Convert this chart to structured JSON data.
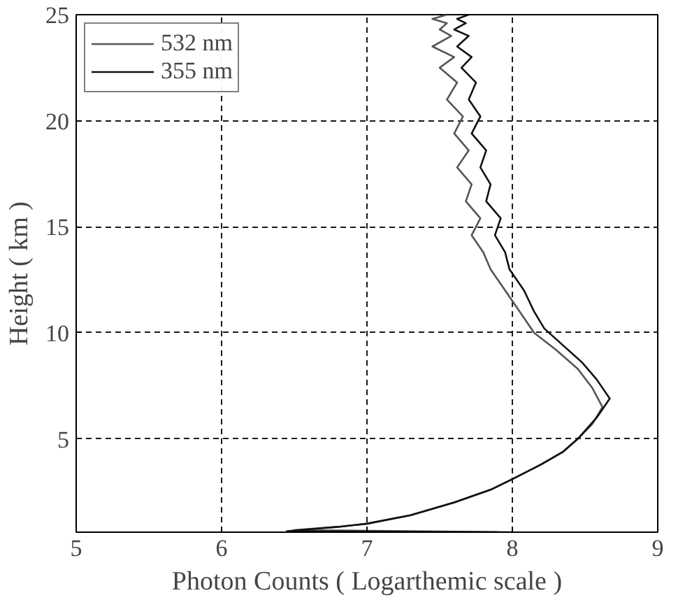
{
  "chart_data": {
    "type": "line",
    "xlabel": "Photon Counts ( Logarthemic scale )",
    "ylabel": "Height ( km )",
    "xlim": [
      5,
      9
    ],
    "ylim": [
      0.6,
      25
    ],
    "xticks": [
      5,
      6,
      7,
      8,
      9
    ],
    "yticks": [
      5,
      10,
      15,
      20,
      25
    ],
    "grid": true,
    "legend": "top left",
    "line_style": "solid",
    "marker": "none",
    "series": [
      {
        "name": "532 nm",
        "color": "#555555",
        "x": [
          8.0,
          6.5,
          6.8,
          7.0,
          7.3,
          7.6,
          7.85,
          8.0,
          8.2,
          8.35,
          8.45,
          8.55,
          8.62,
          8.55,
          8.45,
          8.3,
          8.15,
          8.05,
          7.95,
          7.85,
          7.8,
          7.72,
          7.78,
          7.68,
          7.72,
          7.62,
          7.7,
          7.6,
          7.66,
          7.55,
          7.62,
          7.5,
          7.6,
          7.45,
          7.58,
          7.5,
          7.55,
          7.45,
          7.55
        ],
        "values": [
          0.6,
          0.7,
          0.85,
          1.0,
          1.4,
          2.0,
          2.6,
          3.1,
          3.8,
          4.4,
          5.0,
          5.7,
          6.5,
          7.4,
          8.3,
          9.2,
          10.0,
          11.0,
          12.0,
          13.0,
          13.8,
          14.6,
          15.4,
          16.2,
          17.0,
          17.8,
          18.6,
          19.4,
          20.2,
          21.0,
          21.8,
          22.5,
          23.0,
          23.5,
          24.0,
          24.3,
          24.6,
          24.8,
          25.0
        ]
      },
      {
        "name": "355 nm",
        "color": "#111111",
        "x": [
          7.9,
          6.45,
          6.8,
          7.0,
          7.3,
          7.6,
          7.85,
          8.0,
          8.2,
          8.35,
          8.45,
          8.58,
          8.67,
          8.58,
          8.48,
          8.35,
          8.22,
          8.15,
          8.08,
          7.98,
          7.95,
          7.88,
          7.92,
          7.82,
          7.85,
          7.78,
          7.82,
          7.72,
          7.78,
          7.7,
          7.75,
          7.65,
          7.72,
          7.62,
          7.7,
          7.6,
          7.68,
          7.62,
          7.7
        ],
        "values": [
          0.6,
          0.65,
          0.85,
          1.0,
          1.4,
          2.0,
          2.6,
          3.1,
          3.8,
          4.4,
          5.0,
          6.0,
          6.9,
          7.8,
          8.6,
          9.4,
          10.2,
          11.0,
          12.0,
          13.0,
          13.8,
          14.6,
          15.4,
          16.2,
          17.0,
          17.8,
          18.6,
          19.4,
          20.2,
          21.0,
          21.8,
          22.5,
          23.0,
          23.5,
          24.0,
          24.3,
          24.6,
          24.8,
          25.0
        ]
      }
    ]
  }
}
